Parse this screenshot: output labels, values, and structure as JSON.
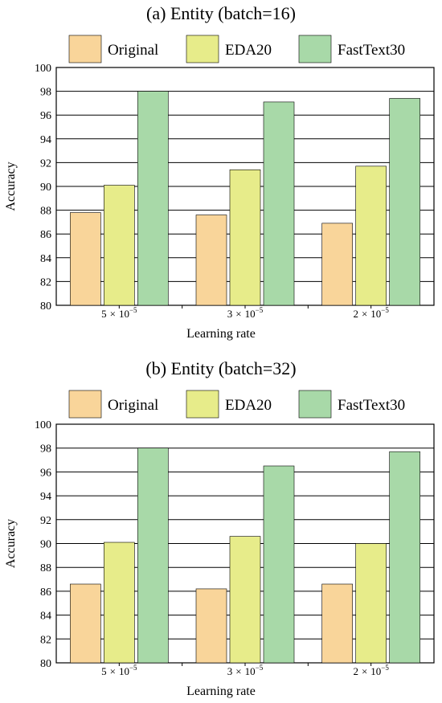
{
  "chart_data": [
    {
      "type": "bar",
      "title": "(a) Entity (batch=16)",
      "xlabel": "Learning rate",
      "ylabel": "Accuracy",
      "ylim": [
        80,
        100
      ],
      "yticks": [
        "80",
        "82",
        "84",
        "86",
        "88",
        "90",
        "92",
        "94",
        "96",
        "98",
        "100"
      ],
      "categories": [
        {
          "mantissa": "5",
          "times": "×",
          "base": "10",
          "exponent": "−5"
        },
        {
          "mantissa": "3",
          "times": "×",
          "base": "10",
          "exponent": "−5"
        },
        {
          "mantissa": "2",
          "times": "×",
          "base": "10",
          "exponent": "−5"
        }
      ],
      "grid": true,
      "legend_position": "top",
      "series": [
        {
          "name": "Original",
          "color": "#f9d59a",
          "values": [
            87.8,
            87.6,
            86.9
          ]
        },
        {
          "name": "EDA20",
          "color": "#e7ec8a",
          "values": [
            90.1,
            91.4,
            91.7
          ]
        },
        {
          "name": "FastText30",
          "color": "#a8d9a8",
          "values": [
            98.0,
            97.1,
            97.4
          ]
        }
      ]
    },
    {
      "type": "bar",
      "title": "(b) Entity (batch=32)",
      "xlabel": "Learning rate",
      "ylabel": "Accuracy",
      "ylim": [
        80,
        100
      ],
      "yticks": [
        "80",
        "82",
        "84",
        "86",
        "88",
        "90",
        "92",
        "94",
        "96",
        "98",
        "100"
      ],
      "categories": [
        {
          "mantissa": "5",
          "times": "×",
          "base": "10",
          "exponent": "−5"
        },
        {
          "mantissa": "3",
          "times": "×",
          "base": "10",
          "exponent": "−5"
        },
        {
          "mantissa": "2",
          "times": "×",
          "base": "10",
          "exponent": "−5"
        }
      ],
      "grid": true,
      "legend_position": "top",
      "series": [
        {
          "name": "Original",
          "color": "#f9d59a",
          "values": [
            86.6,
            86.2,
            86.6
          ]
        },
        {
          "name": "EDA20",
          "color": "#e7ec8a",
          "values": [
            90.1,
            90.6,
            90.0
          ]
        },
        {
          "name": "FastText30",
          "color": "#a8d9a8",
          "values": [
            98.0,
            96.5,
            97.7
          ]
        }
      ]
    }
  ]
}
